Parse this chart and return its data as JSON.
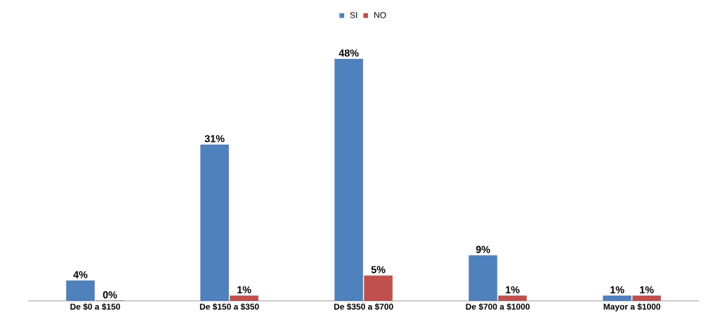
{
  "chart_data": {
    "type": "bar",
    "categories": [
      "De $0 a $150",
      "De $150 a $350",
      "De $350 a $700",
      "De $700 a $1000",
      "Mayor a $1000"
    ],
    "series": [
      {
        "name": "SI",
        "color": "#4f81bd",
        "values": [
          4,
          31,
          48,
          9,
          1
        ],
        "value_labels": [
          "4%",
          "31%",
          "48%",
          "9%",
          "1%"
        ]
      },
      {
        "name": "NO",
        "color": "#c0504d",
        "values": [
          0,
          1,
          5,
          1,
          1
        ],
        "value_labels": [
          "0%",
          "1%",
          "5%",
          "1%",
          "1%"
        ]
      }
    ],
    "legend": "top"
  }
}
